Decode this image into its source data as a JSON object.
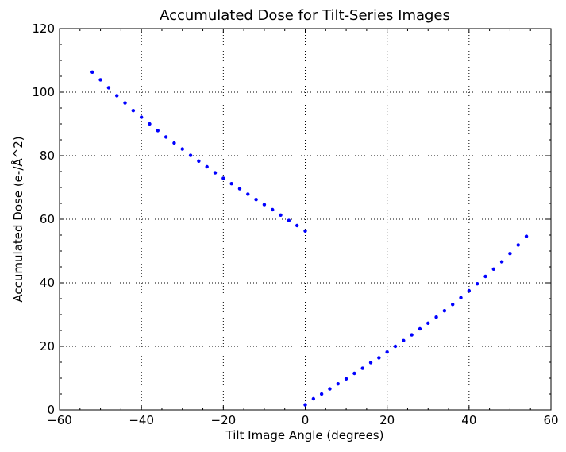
{
  "chart_data": {
    "type": "scatter",
    "title": "Accumulated Dose for Tilt-Series Images",
    "xlabel": "Tilt Image Angle (degrees)",
    "ylabel": "Accumulated Dose (e-/Å^2)",
    "xlim": [
      -60,
      60
    ],
    "ylim": [
      0,
      120
    ],
    "xticks": [
      -60,
      -40,
      -20,
      0,
      20,
      40,
      60
    ],
    "xtick_labels": [
      "−60",
      "−40",
      "−20",
      "0",
      "20",
      "40",
      "60"
    ],
    "yticks": [
      0,
      20,
      40,
      60,
      80,
      100,
      120
    ],
    "ytick_labels": [
      "0",
      "20",
      "40",
      "60",
      "80",
      "100",
      "120"
    ],
    "grid": true,
    "marker_color": "#0000ff",
    "points": [
      {
        "x": 0,
        "y": 1.6
      },
      {
        "x": 2,
        "y": 3.5
      },
      {
        "x": 4,
        "y": 5.0
      },
      {
        "x": 6,
        "y": 6.6
      },
      {
        "x": 8,
        "y": 8.2
      },
      {
        "x": 10,
        "y": 9.8
      },
      {
        "x": 12,
        "y": 11.5
      },
      {
        "x": 14,
        "y": 13.1
      },
      {
        "x": 16,
        "y": 14.9
      },
      {
        "x": 18,
        "y": 16.4
      },
      {
        "x": 20,
        "y": 18.2
      },
      {
        "x": 22,
        "y": 20.0
      },
      {
        "x": 24,
        "y": 21.8
      },
      {
        "x": 26,
        "y": 23.6
      },
      {
        "x": 28,
        "y": 25.5
      },
      {
        "x": 30,
        "y": 27.3
      },
      {
        "x": 32,
        "y": 29.2
      },
      {
        "x": 34,
        "y": 31.2
      },
      {
        "x": 36,
        "y": 33.2
      },
      {
        "x": 38,
        "y": 35.3
      },
      {
        "x": 40,
        "y": 37.5
      },
      {
        "x": 42,
        "y": 39.7
      },
      {
        "x": 44,
        "y": 42.0
      },
      {
        "x": 46,
        "y": 44.3
      },
      {
        "x": 48,
        "y": 46.6
      },
      {
        "x": 50,
        "y": 49.2
      },
      {
        "x": 52,
        "y": 51.9
      },
      {
        "x": 54,
        "y": 54.6
      },
      {
        "x": -2,
        "y": 58.0
      },
      {
        "x": -4,
        "y": 59.6
      },
      {
        "x": -6,
        "y": 61.3
      },
      {
        "x": -8,
        "y": 63.0
      },
      {
        "x": -10,
        "y": 64.6
      },
      {
        "x": -12,
        "y": 66.2
      },
      {
        "x": -14,
        "y": 67.9
      },
      {
        "x": -16,
        "y": 69.6
      },
      {
        "x": -18,
        "y": 71.2
      },
      {
        "x": -20,
        "y": 72.9
      },
      {
        "x": -22,
        "y": 74.6
      },
      {
        "x": -24,
        "y": 76.5
      },
      {
        "x": -26,
        "y": 78.3
      },
      {
        "x": -28,
        "y": 80.1
      },
      {
        "x": -30,
        "y": 82.1
      },
      {
        "x": -32,
        "y": 84.0
      },
      {
        "x": -34,
        "y": 85.9
      },
      {
        "x": -36,
        "y": 87.9
      },
      {
        "x": -38,
        "y": 90.0
      },
      {
        "x": -40,
        "y": 92.1
      },
      {
        "x": -42,
        "y": 94.2
      },
      {
        "x": -44,
        "y": 96.6
      },
      {
        "x": -46,
        "y": 98.9
      },
      {
        "x": -48,
        "y": 101.4
      },
      {
        "x": -50,
        "y": 103.9
      },
      {
        "x": -52,
        "y": 106.3
      },
      {
        "x": 0,
        "y": 56.3
      }
    ]
  }
}
